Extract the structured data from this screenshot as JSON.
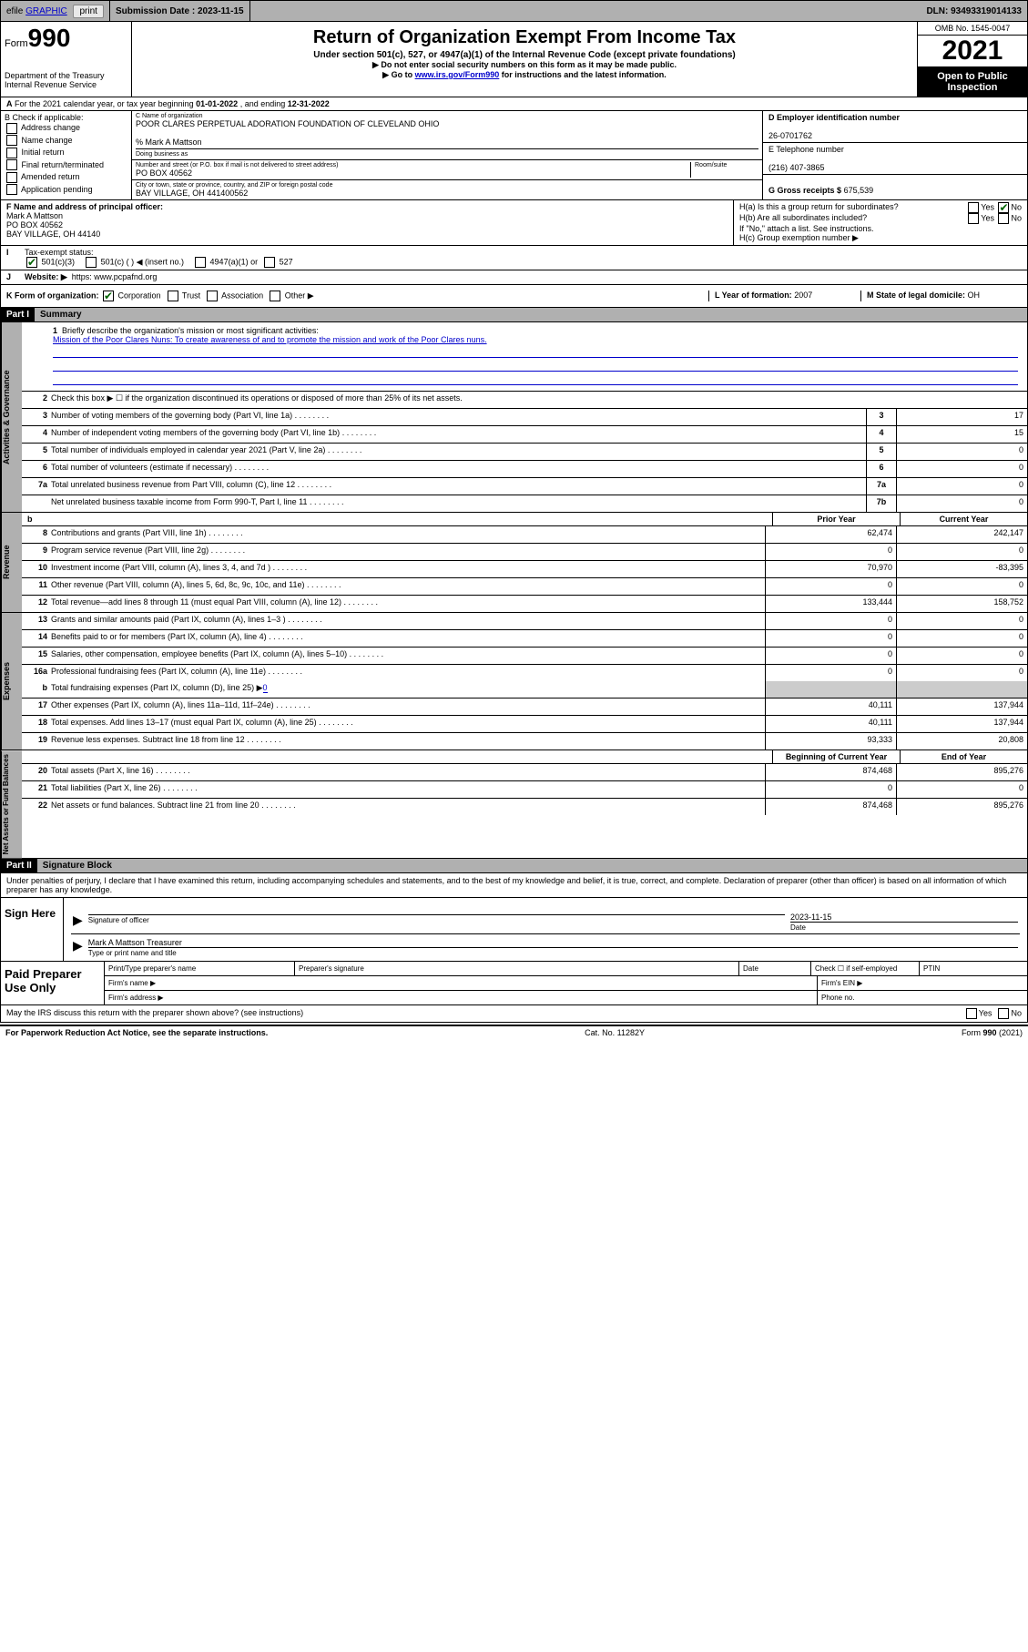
{
  "top": {
    "efile_prefix": "efile",
    "efile_link": "GRAPHIC",
    "print": "print",
    "submission_label": "Submission Date :",
    "submission_date": "2023-11-15",
    "dln_label": "DLN:",
    "dln": "93493319014133"
  },
  "header": {
    "form_small": "Form",
    "form_big": "990",
    "dept": "Department of the Treasury",
    "irs": "Internal Revenue Service",
    "title": "Return of Organization Exempt From Income Tax",
    "subtitle": "Under section 501(c), 527, or 4947(a)(1) of the Internal Revenue Code (except private foundations)",
    "instr1": "▶ Do not enter social security numbers on this form as it may be made public.",
    "instr2_pre": "▶ Go to ",
    "instr2_link": "www.irs.gov/Form990",
    "instr2_post": " for instructions and the latest information.",
    "omb": "OMB No. 1545-0047",
    "year": "2021",
    "inspect1": "Open to Public",
    "inspect2": "Inspection"
  },
  "a": {
    "text_pre": "For the 2021 calendar year, or tax year beginning ",
    "begin": "01-01-2022",
    "mid": " , and ending ",
    "end": "12-31-2022"
  },
  "b": {
    "label": "B Check if applicable:",
    "opts": [
      "Address change",
      "Name change",
      "Initial return",
      "Final return/terminated",
      "Amended return",
      "Application pending"
    ]
  },
  "c": {
    "name_label": "C Name of organization",
    "name": "POOR CLARES PERPETUAL ADORATION FOUNDATION OF CLEVELAND OHIO",
    "care": "% Mark A Mattson",
    "dba_label": "Doing business as",
    "addr_label": "Number and street (or P.O. box if mail is not delivered to street address)",
    "room_label": "Room/suite",
    "addr": "PO BOX 40562",
    "city_label": "City or town, state or province, country, and ZIP or foreign postal code",
    "city": "BAY VILLAGE, OH  441400562"
  },
  "d": {
    "label": "D Employer identification number",
    "val": "26-0701762"
  },
  "e": {
    "label": "E Telephone number",
    "val": "(216) 407-3865"
  },
  "g": {
    "label": "G Gross receipts $",
    "val": "675,539"
  },
  "f": {
    "label": "F Name and address of principal officer:",
    "name": "Mark A Mattson",
    "addr1": "PO BOX 40562",
    "addr2": "BAY VILLAGE, OH  44140"
  },
  "h": {
    "a": "H(a)  Is this a group return for subordinates?",
    "b": "H(b)  Are all subordinates included?",
    "note": "If \"No,\" attach a list. See instructions.",
    "c": "H(c)  Group exemption number ▶",
    "yes": "Yes",
    "no": "No"
  },
  "i": {
    "label": "Tax-exempt status:",
    "o1": "501(c)(3)",
    "o2": "501(c) (  ) ◀ (insert no.)",
    "o3": "4947(a)(1) or",
    "o4": "527"
  },
  "j": {
    "label": "Website: ▶",
    "val": "https: www.pcpafnd.org"
  },
  "k": {
    "label": "K Form of organization:",
    "o1": "Corporation",
    "o2": "Trust",
    "o3": "Association",
    "o4": "Other ▶"
  },
  "l": {
    "label": "L Year of formation:",
    "val": "2007"
  },
  "m": {
    "label": "M State of legal domicile:",
    "val": "OH"
  },
  "part1": {
    "hdr": "Part I",
    "title": "Summary"
  },
  "summary": {
    "l1_label": "Briefly describe the organization's mission or most significant activities:",
    "l1_text": "Mission of the Poor Clares Nuns: To create awareness of and to promote the mission and work of the Poor Clares nuns.",
    "l2": "Check this box ▶ ☐  if the organization discontinued its operations or disposed of more than 25% of its net assets.",
    "lines_ag": [
      {
        "n": "3",
        "d": "Number of voting members of the governing body (Part VI, line 1a)",
        "b": "3",
        "v": "17"
      },
      {
        "n": "4",
        "d": "Number of independent voting members of the governing body (Part VI, line 1b)",
        "b": "4",
        "v": "15"
      },
      {
        "n": "5",
        "d": "Total number of individuals employed in calendar year 2021 (Part V, line 2a)",
        "b": "5",
        "v": "0"
      },
      {
        "n": "6",
        "d": "Total number of volunteers (estimate if necessary)",
        "b": "6",
        "v": "0"
      },
      {
        "n": "7a",
        "d": "Total unrelated business revenue from Part VIII, column (C), line 12",
        "b": "7a",
        "v": "0"
      },
      {
        "n": "",
        "d": "Net unrelated business taxable income from Form 990-T, Part I, line 11",
        "b": "7b",
        "v": "0"
      }
    ],
    "hdr_b": "b",
    "hdr_prior": "Prior Year",
    "hdr_curr": "Current Year",
    "lines_rev": [
      {
        "n": "8",
        "d": "Contributions and grants (Part VIII, line 1h)",
        "p": "62,474",
        "c": "242,147"
      },
      {
        "n": "9",
        "d": "Program service revenue (Part VIII, line 2g)",
        "p": "0",
        "c": "0"
      },
      {
        "n": "10",
        "d": "Investment income (Part VIII, column (A), lines 3, 4, and 7d )",
        "p": "70,970",
        "c": "-83,395"
      },
      {
        "n": "11",
        "d": "Other revenue (Part VIII, column (A), lines 5, 6d, 8c, 9c, 10c, and 11e)",
        "p": "0",
        "c": "0"
      },
      {
        "n": "12",
        "d": "Total revenue—add lines 8 through 11 (must equal Part VIII, column (A), line 12)",
        "p": "133,444",
        "c": "158,752"
      }
    ],
    "lines_exp": [
      {
        "n": "13",
        "d": "Grants and similar amounts paid (Part IX, column (A), lines 1–3 )",
        "p": "0",
        "c": "0"
      },
      {
        "n": "14",
        "d": "Benefits paid to or for members (Part IX, column (A), line 4)",
        "p": "0",
        "c": "0"
      },
      {
        "n": "15",
        "d": "Salaries, other compensation, employee benefits (Part IX, column (A), lines 5–10)",
        "p": "0",
        "c": "0"
      },
      {
        "n": "16a",
        "d": "Professional fundraising fees (Part IX, column (A), line 11e)",
        "p": "0",
        "c": "0"
      }
    ],
    "l16b_n": "b",
    "l16b_d": "Total fundraising expenses (Part IX, column (D), line 25) ▶",
    "l16b_v": "0",
    "lines_exp2": [
      {
        "n": "17",
        "d": "Other expenses (Part IX, column (A), lines 11a–11d, 11f–24e)",
        "p": "40,111",
        "c": "137,944"
      },
      {
        "n": "18",
        "d": "Total expenses. Add lines 13–17 (must equal Part IX, column (A), line 25)",
        "p": "40,111",
        "c": "137,944"
      },
      {
        "n": "19",
        "d": "Revenue less expenses. Subtract line 18 from line 12",
        "p": "93,333",
        "c": "20,808"
      }
    ],
    "hdr_boy": "Beginning of Current Year",
    "hdr_eoy": "End of Year",
    "lines_na": [
      {
        "n": "20",
        "d": "Total assets (Part X, line 16)",
        "p": "874,468",
        "c": "895,276"
      },
      {
        "n": "21",
        "d": "Total liabilities (Part X, line 26)",
        "p": "0",
        "c": "0"
      },
      {
        "n": "22",
        "d": "Net assets or fund balances. Subtract line 21 from line 20",
        "p": "874,468",
        "c": "895,276"
      }
    ],
    "side_ag": "Activities & Governance",
    "side_rev": "Revenue",
    "side_exp": "Expenses",
    "side_na": "Net Assets or Fund Balances"
  },
  "part2": {
    "hdr": "Part II",
    "title": "Signature Block"
  },
  "sig": {
    "penalty": "Under penalties of perjury, I declare that I have examined this return, including accompanying schedules and statements, and to the best of my knowledge and belief, it is true, correct, and complete. Declaration of preparer (other than officer) is based on all information of which preparer has any knowledge.",
    "sign_here": "Sign Here",
    "sig_officer": "Signature of officer",
    "date_lbl": "Date",
    "date": "2023-11-15",
    "name_title": "Mark A Mattson Treasurer",
    "type_name": "Type or print name and title",
    "paid_prep": "Paid Preparer Use Only",
    "pt_name": "Print/Type preparer's name",
    "pt_sig": "Preparer's signature",
    "pt_date": "Date",
    "pt_check": "Check ☐ if self-employed",
    "pt_ptin": "PTIN",
    "firm_name": "Firm's name    ▶",
    "firm_ein": "Firm's EIN ▶",
    "firm_addr": "Firm's address ▶",
    "phone": "Phone no.",
    "may_irs": "May the IRS discuss this return with the preparer shown above? (see instructions)"
  },
  "footer": {
    "paperwork": "For Paperwork Reduction Act Notice, see the separate instructions.",
    "cat": "Cat. No. 11282Y",
    "form": "Form 990 (2021)"
  },
  "colors": {
    "grey": "#b0b0b0",
    "link": "#0000cc",
    "check": "#006400"
  }
}
